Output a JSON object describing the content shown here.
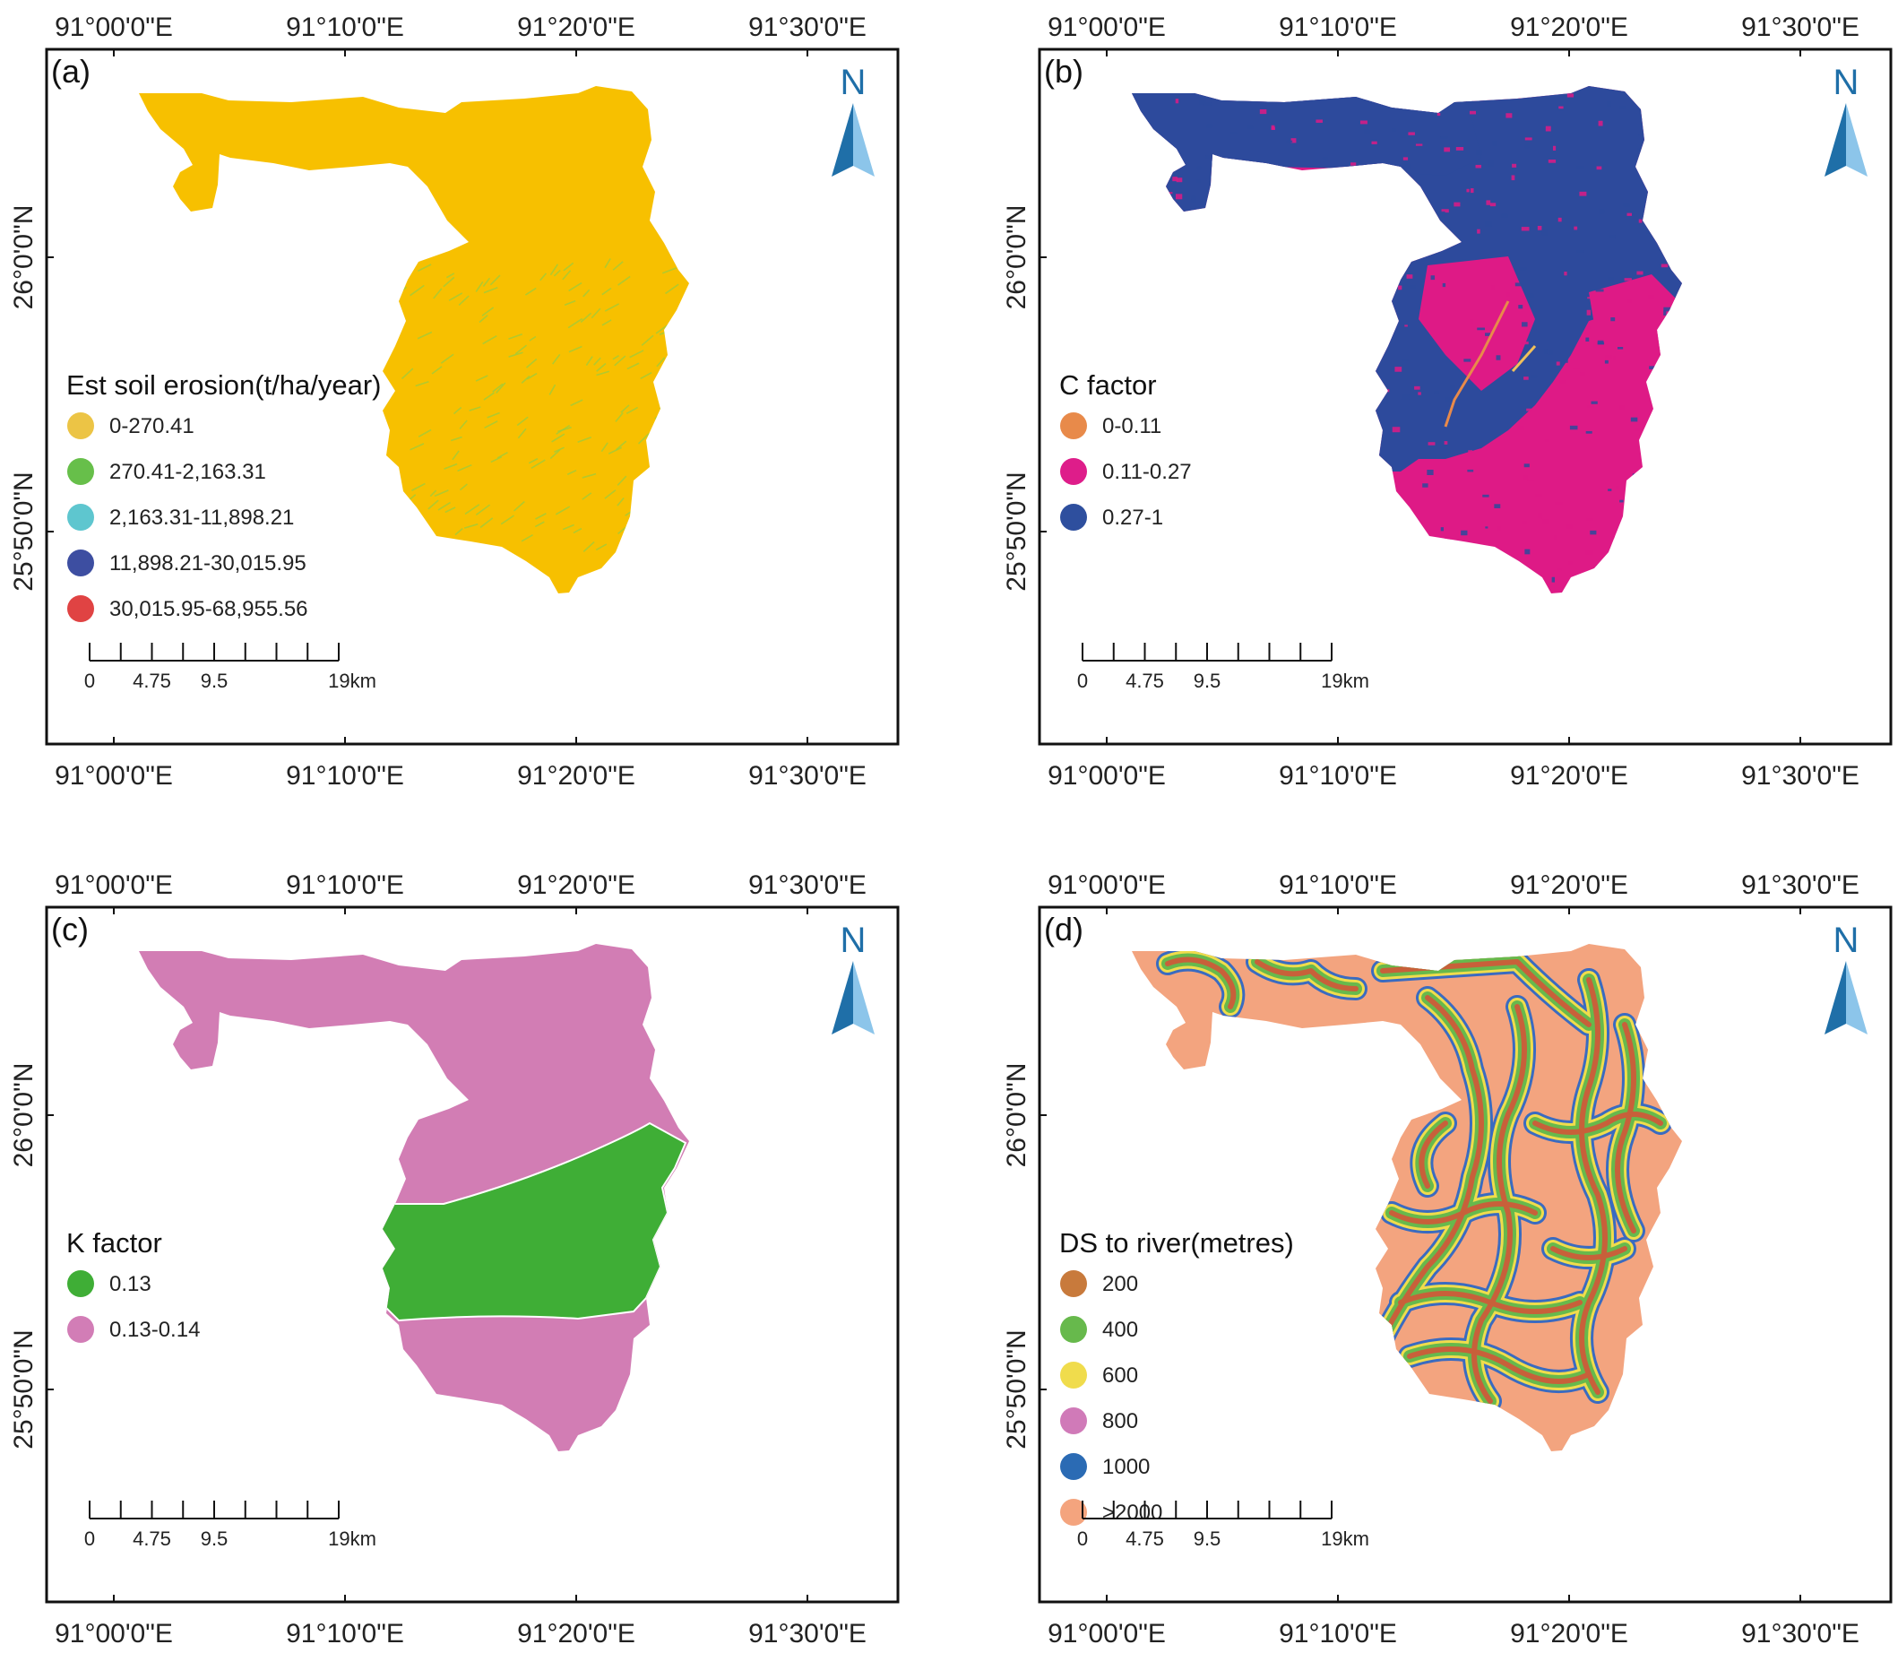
{
  "panels": [
    {
      "id": "a",
      "label": "(a)",
      "legend_title": "Est soil erosion(t/ha/year)",
      "legend": [
        {
          "label": "0-270.41",
          "color": "#ecc445"
        },
        {
          "label": "270.41-2,163.31",
          "color": "#67bf4a"
        },
        {
          "label": "2,163.31-11,898.21",
          "color": "#5ec6cf"
        },
        {
          "label": "11,898.21-30,015.95",
          "color": "#3d4ea1"
        },
        {
          "label": "30,015.95-68,955.56",
          "color": "#e04343"
        }
      ],
      "fill": "#f7c000",
      "map_style": "erosion"
    },
    {
      "id": "b",
      "label": "(b)",
      "legend_title": "C factor",
      "legend": [
        {
          "label": "0-0.11",
          "color": "#e88a4a"
        },
        {
          "label": "0.11-0.27",
          "color": "#de1d8a"
        },
        {
          "label": "0.27-1",
          "color": "#2e4f9e"
        }
      ],
      "fill": "#de1a86",
      "map_style": "cfactor"
    },
    {
      "id": "c",
      "label": "(c)",
      "legend_title": "K factor",
      "legend": [
        {
          "label": "0.13",
          "color": "#3fae36"
        },
        {
          "label": "0.13-0.14",
          "color": "#d27db6"
        }
      ],
      "fill": "#d27db4",
      "map_style": "kfactor"
    },
    {
      "id": "d",
      "label": "(d)",
      "legend_title": "DS to river(metres)",
      "legend": [
        {
          "label": "200",
          "color": "#c87a3c"
        },
        {
          "label": "400",
          "color": "#67b94c"
        },
        {
          "label": "600",
          "color": "#f0dc4c"
        },
        {
          "label": "800",
          "color": "#d07ab8"
        },
        {
          "label": "1000",
          "color": "#2b6bb4"
        },
        {
          "label": ">2000",
          "color": "#f4a47e"
        }
      ],
      "fill": "#f3a47f",
      "map_style": "river"
    }
  ],
  "x_ticks": [
    "91°00'0\"E",
    "91°10'0\"E",
    "91°20'0\"E",
    "91°30'0\"E"
  ],
  "y_ticks": [
    "26°0'0\"N",
    "25°50'0\"N"
  ],
  "north_label": "N",
  "scale_bar": {
    "labels": [
      "0",
      "4.75",
      "9.5",
      "19km"
    ],
    "values": [
      0,
      4.75,
      9.5,
      19
    ]
  }
}
